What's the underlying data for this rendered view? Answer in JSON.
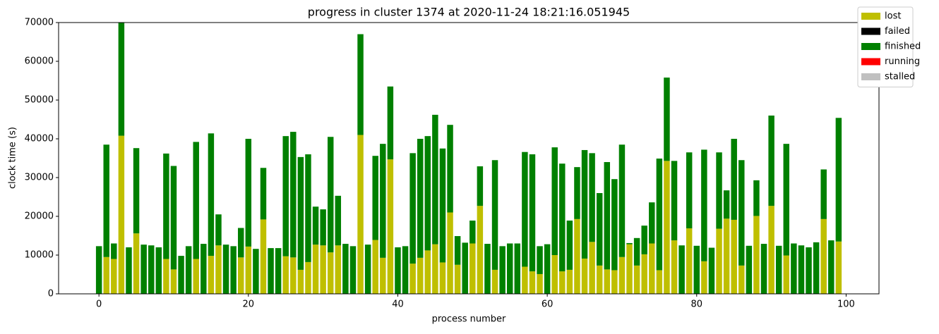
{
  "chart_data": {
    "type": "stacked_bar",
    "title": "progress in cluster 1374 at 2020-11-24 18:21:16.051945",
    "x_label": "process number",
    "y_label": "clock time (s)",
    "x": [
      0,
      1,
      2,
      3,
      4,
      5,
      6,
      7,
      8,
      9,
      10,
      11,
      12,
      13,
      14,
      15,
      16,
      17,
      18,
      19,
      20,
      21,
      22,
      23,
      24,
      25,
      26,
      27,
      28,
      29,
      30,
      31,
      32,
      33,
      34,
      35,
      36,
      37,
      38,
      39,
      40,
      41,
      42,
      43,
      44,
      45,
      46,
      47,
      48,
      49,
      50,
      51,
      52,
      53,
      54,
      55,
      56,
      57,
      58,
      59,
      60,
      61,
      62,
      63,
      64,
      65,
      66,
      67,
      68,
      69,
      70,
      71,
      72,
      73,
      74,
      75,
      76,
      77,
      78,
      79,
      80,
      81,
      82,
      83,
      84,
      85,
      86,
      87,
      88,
      89,
      90,
      91,
      92,
      93,
      94,
      95,
      96,
      97,
      98,
      99
    ],
    "series": [
      {
        "name": "lost",
        "color": "#bfbf00",
        "values": [
          0,
          9500,
          9000,
          40800,
          0,
          15600,
          0,
          0,
          0,
          9000,
          6300,
          0,
          0,
          9000,
          0,
          9800,
          12500,
          0,
          0,
          9400,
          12200,
          0,
          19200,
          0,
          0,
          9700,
          9400,
          6200,
          8200,
          12700,
          12500,
          10700,
          12500,
          0,
          0,
          41000,
          0,
          13900,
          9300,
          34700,
          0,
          0,
          7800,
          9300,
          11200,
          12800,
          8100,
          21000,
          7500,
          0,
          13000,
          22700,
          0,
          6200,
          0,
          0,
          0,
          7000,
          5800,
          5100,
          0,
          10000,
          5800,
          6200,
          19300,
          9100,
          13400,
          7300,
          6300,
          6100,
          9500,
          12800,
          7300,
          10200,
          13000,
          6100,
          34300,
          13800,
          0,
          16900,
          0,
          8400,
          0,
          16800,
          19400,
          19100,
          7300,
          0,
          20100,
          0,
          22700,
          0,
          9900,
          0,
          0,
          0,
          0,
          19300,
          0,
          13500
        ]
      },
      {
        "name": "failed",
        "color": "#000000",
        "values": [
          0,
          0,
          0,
          0,
          0,
          0,
          0,
          0,
          0,
          0,
          0,
          0,
          0,
          0,
          0,
          0,
          0,
          0,
          0,
          0,
          0,
          0,
          0,
          0,
          0,
          0,
          0,
          0,
          0,
          0,
          0,
          0,
          0,
          0,
          0,
          0,
          0,
          0,
          0,
          0,
          0,
          0,
          0,
          0,
          0,
          0,
          0,
          0,
          0,
          0,
          0,
          0,
          0,
          0,
          0,
          0,
          0,
          0,
          0,
          0,
          0,
          0,
          0,
          0,
          0,
          0,
          0,
          0,
          0,
          0,
          0,
          0,
          0,
          0,
          0,
          0,
          0,
          0,
          0,
          0,
          0,
          0,
          0,
          0,
          0,
          0,
          0,
          0,
          0,
          0,
          0,
          0,
          0,
          0,
          0,
          0,
          0,
          0,
          0,
          0
        ]
      },
      {
        "name": "finished",
        "color": "#008000",
        "values": [
          12300,
          29000,
          4000,
          29200,
          12000,
          22000,
          12700,
          12500,
          12000,
          27200,
          26700,
          9800,
          12300,
          30200,
          12900,
          31600,
          8000,
          12700,
          12300,
          7600,
          27800,
          11600,
          13300,
          11800,
          11800,
          31000,
          32400,
          29100,
          27800,
          9800,
          9300,
          29800,
          12800,
          12900,
          12300,
          26000,
          12700,
          21700,
          29400,
          18800,
          12000,
          12300,
          28500,
          30700,
          29500,
          33400,
          29400,
          22600,
          7400,
          13200,
          5900,
          10200,
          12900,
          28300,
          12300,
          13000,
          13000,
          29600,
          30200,
          7200,
          12800,
          27800,
          27800,
          12700,
          13400,
          28000,
          22900,
          18700,
          27700,
          23500,
          29000,
          300,
          7100,
          7400,
          10600,
          28800,
          21500,
          20500,
          12500,
          19600,
          12400,
          28800,
          11900,
          19700,
          7300,
          20900,
          27200,
          12400,
          9200,
          12900,
          23300,
          12400,
          28800,
          13000,
          12500,
          12000,
          13300,
          12800,
          13800,
          31900
        ]
      },
      {
        "name": "running",
        "color": "#ff0000",
        "values": [
          0,
          0,
          0,
          0,
          0,
          0,
          0,
          0,
          0,
          0,
          0,
          0,
          0,
          0,
          0,
          0,
          0,
          0,
          0,
          0,
          0,
          0,
          0,
          0,
          0,
          0,
          0,
          0,
          0,
          0,
          0,
          0,
          0,
          0,
          0,
          0,
          0,
          0,
          0,
          0,
          0,
          0,
          0,
          0,
          0,
          0,
          0,
          0,
          0,
          0,
          0,
          0,
          0,
          0,
          0,
          0,
          0,
          0,
          0,
          0,
          0,
          0,
          0,
          0,
          0,
          0,
          0,
          0,
          0,
          0,
          0,
          0,
          0,
          0,
          0,
          0,
          0,
          0,
          0,
          0,
          0,
          0,
          0,
          0,
          0,
          0,
          0,
          0,
          0,
          0,
          0,
          0,
          0,
          0,
          0,
          0,
          0,
          0,
          0,
          0
        ]
      },
      {
        "name": "stalled",
        "color": "#c0c0c0",
        "values": [
          0,
          0,
          0,
          0,
          0,
          0,
          0,
          0,
          0,
          0,
          0,
          0,
          0,
          0,
          0,
          0,
          0,
          0,
          0,
          0,
          0,
          0,
          0,
          0,
          0,
          0,
          0,
          0,
          0,
          0,
          0,
          0,
          0,
          0,
          0,
          0,
          0,
          0,
          0,
          0,
          0,
          0,
          0,
          0,
          0,
          0,
          0,
          0,
          0,
          0,
          0,
          0,
          0,
          0,
          0,
          0,
          0,
          0,
          0,
          0,
          0,
          0,
          0,
          0,
          0,
          0,
          0,
          0,
          0,
          0,
          0,
          0,
          0,
          0,
          0,
          0,
          0,
          0,
          0,
          0,
          0,
          0,
          0,
          0,
          0,
          0,
          0,
          0,
          0,
          0,
          0,
          0,
          0,
          0,
          0,
          0,
          0,
          0,
          0,
          0
        ]
      }
    ],
    "xlim": [
      -5.4,
      104.4
    ],
    "xticks": [
      0,
      20,
      40,
      60,
      80,
      100
    ],
    "ylim": [
      0,
      70000
    ],
    "yticks": [
      0,
      10000,
      20000,
      30000,
      40000,
      50000,
      60000,
      70000
    ],
    "legend": "upper right"
  }
}
